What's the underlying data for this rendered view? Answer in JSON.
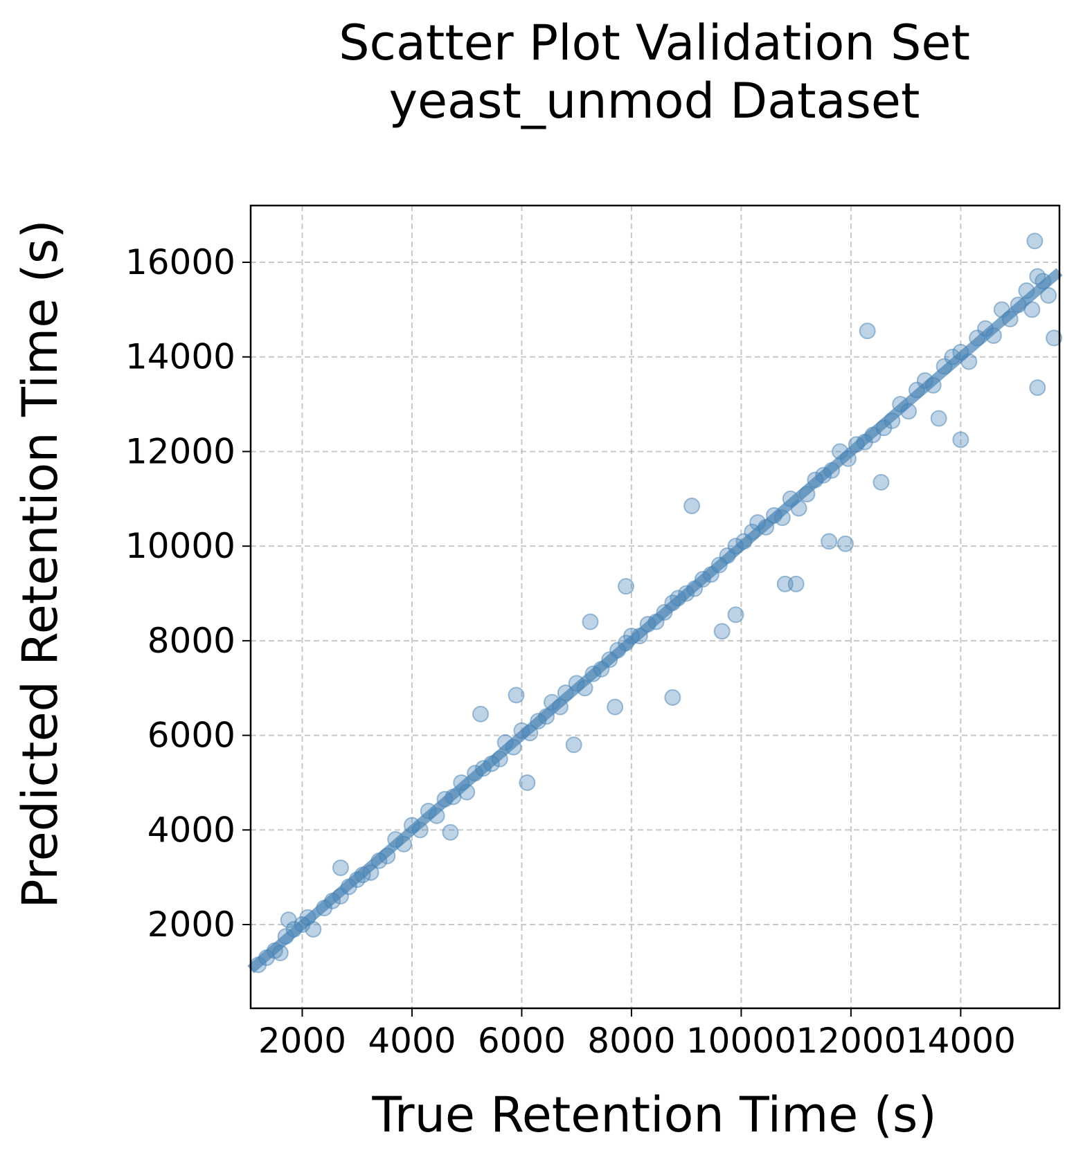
{
  "chart_data": {
    "type": "scatter",
    "title": "Scatter Plot Validation Set",
    "subtitle": "yeast_unmod Dataset",
    "xlabel": "True Retention Time (s)",
    "ylabel": "Predicted Retention Time (s)",
    "xlim": [
      1060,
      15800
    ],
    "ylim": [
      230,
      17200
    ],
    "xticks": [
      2000,
      4000,
      6000,
      8000,
      10000,
      12000,
      14000
    ],
    "xtick_labels": [
      "2000",
      "4000",
      "6000",
      "8000",
      "10000",
      "12000",
      "14000"
    ],
    "yticks": [
      2000,
      4000,
      6000,
      8000,
      10000,
      12000,
      14000,
      16000
    ],
    "ytick_labels": [
      "2000",
      "4000",
      "6000",
      "8000",
      "10000",
      "12000",
      "14000",
      "16000"
    ],
    "grid": true,
    "point_color": "#4682b4",
    "trend_line": {
      "from": [
        1060,
        1050
      ],
      "to": [
        15800,
        15800
      ]
    },
    "series": [
      {
        "points": [
          [
            1200,
            1150
          ],
          [
            1350,
            1300
          ],
          [
            1500,
            1450
          ],
          [
            1600,
            1400
          ],
          [
            1700,
            1750
          ],
          [
            1750,
            2100
          ],
          [
            1850,
            1900
          ],
          [
            2000,
            2000
          ],
          [
            2100,
            2150
          ],
          [
            2200,
            1900
          ],
          [
            2400,
            2350
          ],
          [
            2550,
            2500
          ],
          [
            2700,
            2600
          ],
          [
            2700,
            3200
          ],
          [
            2850,
            2800
          ],
          [
            3000,
            2950
          ],
          [
            3100,
            3050
          ],
          [
            3250,
            3100
          ],
          [
            3400,
            3350
          ],
          [
            3550,
            3450
          ],
          [
            3700,
            3800
          ],
          [
            3850,
            3700
          ],
          [
            4000,
            4100
          ],
          [
            4150,
            4000
          ],
          [
            4300,
            4400
          ],
          [
            4450,
            4300
          ],
          [
            4600,
            4650
          ],
          [
            4700,
            3950
          ],
          [
            4750,
            4700
          ],
          [
            4900,
            5000
          ],
          [
            5000,
            4800
          ],
          [
            5150,
            5200
          ],
          [
            5250,
            6450
          ],
          [
            5300,
            5300
          ],
          [
            5450,
            5400
          ],
          [
            5600,
            5500
          ],
          [
            5700,
            5850
          ],
          [
            5850,
            5750
          ],
          [
            5900,
            6850
          ],
          [
            6000,
            6100
          ],
          [
            6100,
            5000
          ],
          [
            6150,
            6050
          ],
          [
            6300,
            6300
          ],
          [
            6450,
            6400
          ],
          [
            6550,
            6700
          ],
          [
            6700,
            6600
          ],
          [
            6800,
            6900
          ],
          [
            6950,
            5800
          ],
          [
            7000,
            7100
          ],
          [
            7150,
            7000
          ],
          [
            7250,
            8400
          ],
          [
            7300,
            7300
          ],
          [
            7450,
            7400
          ],
          [
            7600,
            7600
          ],
          [
            7700,
            6600
          ],
          [
            7750,
            7800
          ],
          [
            7900,
            7950
          ],
          [
            7900,
            9150
          ],
          [
            8000,
            8100
          ],
          [
            8150,
            8100
          ],
          [
            8300,
            8350
          ],
          [
            8450,
            8400
          ],
          [
            8600,
            8600
          ],
          [
            8750,
            8800
          ],
          [
            8750,
            6800
          ],
          [
            8850,
            8900
          ],
          [
            9000,
            9000
          ],
          [
            9100,
            10850
          ],
          [
            9150,
            9100
          ],
          [
            9300,
            9300
          ],
          [
            9450,
            9400
          ],
          [
            9600,
            9600
          ],
          [
            9650,
            8200
          ],
          [
            9750,
            9800
          ],
          [
            9900,
            8550
          ],
          [
            9900,
            10000
          ],
          [
            10050,
            10100
          ],
          [
            10200,
            10300
          ],
          [
            10300,
            10500
          ],
          [
            10450,
            10400
          ],
          [
            10600,
            10650
          ],
          [
            10750,
            10600
          ],
          [
            10800,
            9200
          ],
          [
            10900,
            11000
          ],
          [
            11000,
            9200
          ],
          [
            11050,
            10800
          ],
          [
            11200,
            11100
          ],
          [
            11350,
            11400
          ],
          [
            11500,
            11500
          ],
          [
            11600,
            10100
          ],
          [
            11650,
            11600
          ],
          [
            11800,
            12000
          ],
          [
            11900,
            10050
          ],
          [
            11950,
            11850
          ],
          [
            12100,
            12150
          ],
          [
            12250,
            12200
          ],
          [
            12300,
            14550
          ],
          [
            12400,
            12350
          ],
          [
            12550,
            11350
          ],
          [
            12600,
            12500
          ],
          [
            12750,
            12650
          ],
          [
            12900,
            13000
          ],
          [
            13050,
            12850
          ],
          [
            13200,
            13300
          ],
          [
            13350,
            13500
          ],
          [
            13500,
            13400
          ],
          [
            13600,
            12700
          ],
          [
            13700,
            13800
          ],
          [
            13850,
            14000
          ],
          [
            14000,
            14100
          ],
          [
            14000,
            12250
          ],
          [
            14150,
            13900
          ],
          [
            14300,
            14400
          ],
          [
            14450,
            14600
          ],
          [
            14600,
            14450
          ],
          [
            14750,
            15000
          ],
          [
            14900,
            14800
          ],
          [
            15050,
            15100
          ],
          [
            15200,
            15400
          ],
          [
            15300,
            15000
          ],
          [
            15350,
            16450
          ],
          [
            15400,
            15700
          ],
          [
            15400,
            13350
          ],
          [
            15500,
            15600
          ],
          [
            15600,
            15300
          ],
          [
            15700,
            14400
          ]
        ]
      }
    ]
  }
}
